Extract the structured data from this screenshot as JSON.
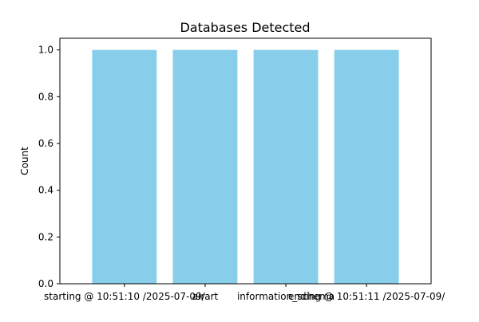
{
  "chart_data": {
    "type": "bar",
    "title": "Databases Detected",
    "xlabel": "",
    "ylabel": "Count",
    "categories": [
      "starting @ 10:51:10 /2025-07-09/",
      "airart",
      "information_schema",
      "ending @ 10:51:11 /2025-07-09/"
    ],
    "values": [
      1,
      1,
      1,
      1
    ],
    "ylim": [
      0,
      1.05
    ],
    "yticks": [
      0.0,
      0.2,
      0.4,
      0.6,
      0.8,
      1.0
    ],
    "ytick_labels": [
      "0.0",
      "0.2",
      "0.4",
      "0.6",
      "0.8",
      "1.0"
    ],
    "bar_color": "#87ceeb",
    "grid": false,
    "legend": "none"
  }
}
